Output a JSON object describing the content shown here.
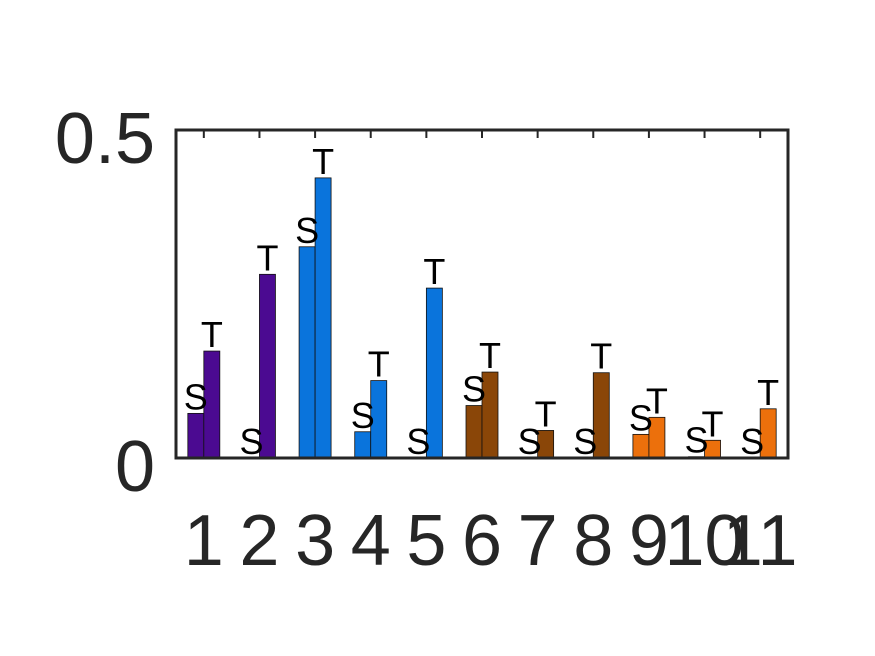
{
  "chart_data": {
    "type": "bar",
    "title": "",
    "xlabel": "",
    "ylabel": "",
    "ylim": [
      0,
      0.5
    ],
    "yticks": [
      "0",
      "0.5"
    ],
    "categories": [
      "1",
      "2",
      "3",
      "4",
      "5",
      "6",
      "7",
      "8",
      "9",
      "10",
      "11"
    ],
    "series": [
      {
        "label": "S",
        "values": [
          0.068,
          0.0,
          0.322,
          0.04,
          0.0,
          0.08,
          0.0,
          0.0,
          0.036,
          0.002,
          0.0
        ]
      },
      {
        "label": "T",
        "values": [
          0.163,
          0.28,
          0.427,
          0.118,
          0.259,
          0.131,
          0.042,
          0.13,
          0.062,
          0.027,
          0.075
        ]
      }
    ],
    "category_colors": [
      "#4b0a91",
      "#4b0a91",
      "#0a74dc",
      "#0a74dc",
      "#0a74dc",
      "#8a4608",
      "#8a4608",
      "#8a4608",
      "#ec700c",
      "#ec700c",
      "#ec700c"
    ],
    "axis_color": "#262626",
    "grid": false
  }
}
